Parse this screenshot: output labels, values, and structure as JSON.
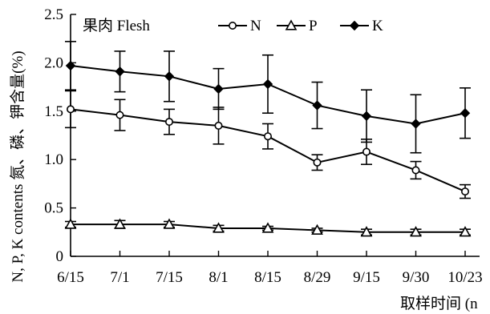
{
  "chart_data": {
    "type": "line",
    "annotation": "果肉 Flesh",
    "xlabel": "取样时间 (n",
    "ylabel": "N, P, K contents 氮、磷、钾含量(%)",
    "categories": [
      "6/15",
      "7/1",
      "7/15",
      "8/1",
      "8/15",
      "8/29",
      "9/15",
      "9/30",
      "10/23"
    ],
    "y_ticks": [
      "0",
      "0.5",
      "1.0",
      "1.5",
      "2.0",
      "2.5"
    ],
    "ylim": [
      0,
      2.5
    ],
    "grid": false,
    "legend_position": "top",
    "series": [
      {
        "name": "N",
        "marker": "circle-open",
        "values": [
          1.52,
          1.46,
          1.39,
          1.35,
          1.24,
          0.97,
          1.08,
          0.89,
          0.67
        ],
        "errors": [
          0.19,
          0.16,
          0.13,
          0.19,
          0.13,
          0.08,
          0.13,
          0.09,
          0.07
        ]
      },
      {
        "name": "P",
        "marker": "triangle-open",
        "values": [
          0.33,
          0.33,
          0.33,
          0.29,
          0.29,
          0.27,
          0.25,
          0.25,
          0.25
        ],
        "errors": [
          0.03,
          0.04,
          0.03,
          0.03,
          0.02,
          0.02,
          0.03,
          0.03,
          0.03
        ]
      },
      {
        "name": "K",
        "marker": "diamond-filled",
        "values": [
          1.97,
          1.91,
          1.86,
          1.73,
          1.78,
          1.56,
          1.45,
          1.37,
          1.48
        ],
        "errors": [
          0.25,
          0.21,
          0.26,
          0.21,
          0.3,
          0.24,
          0.27,
          0.3,
          0.26
        ]
      }
    ]
  }
}
